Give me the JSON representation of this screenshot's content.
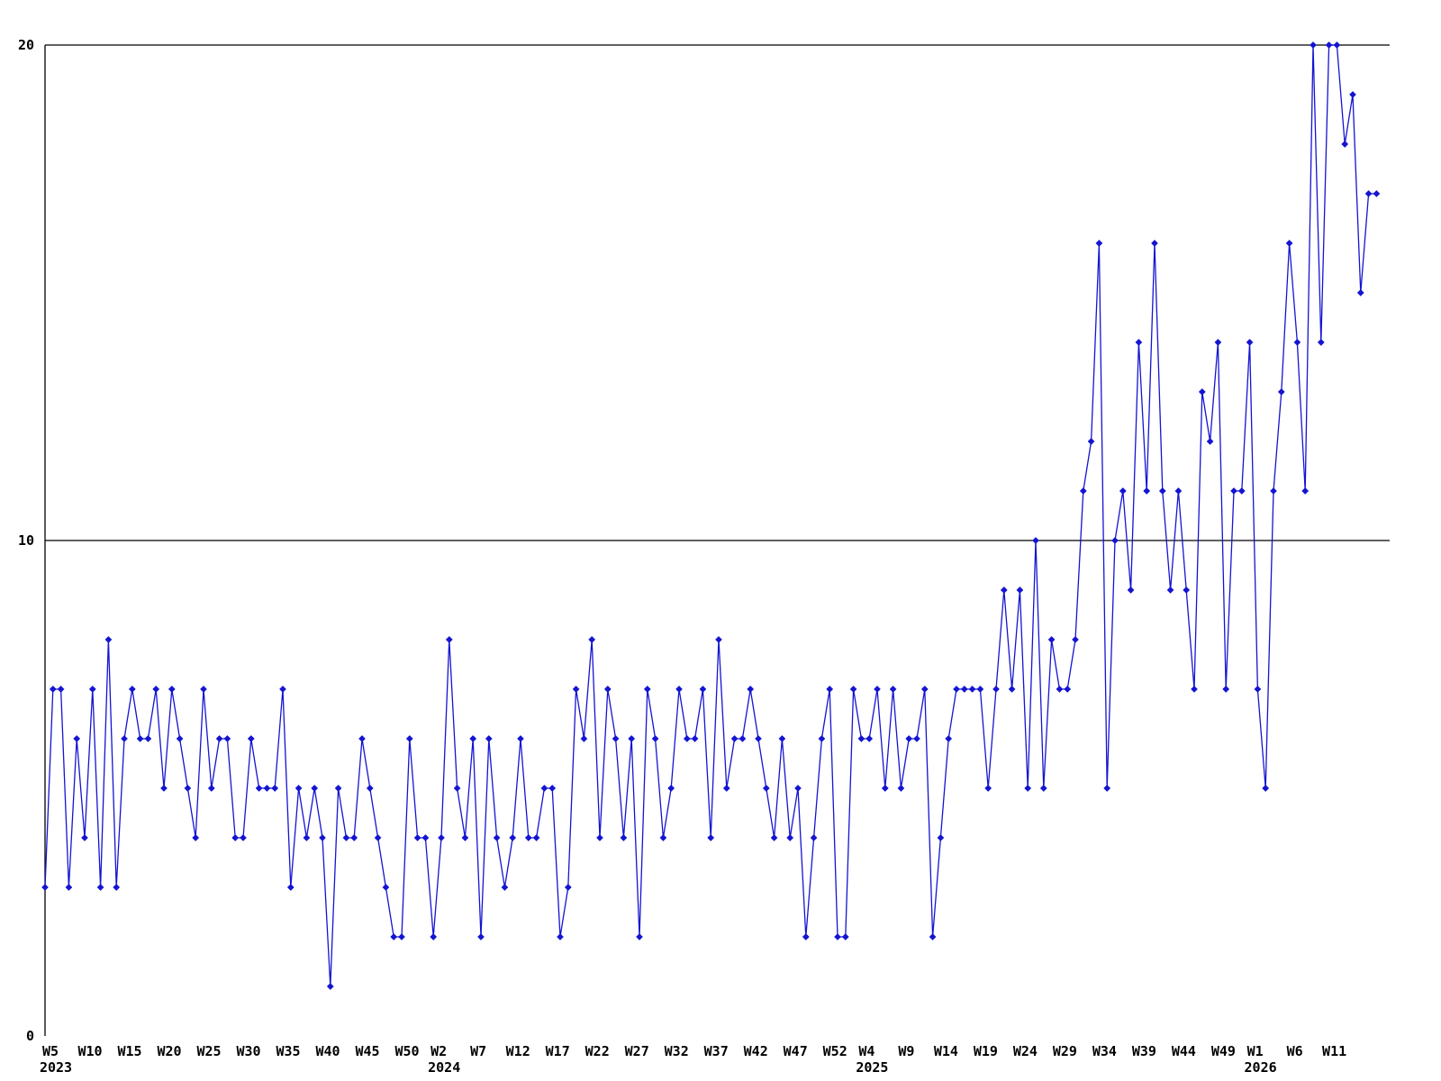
{
  "chart_data": {
    "type": "line",
    "title": "",
    "x_axis": {
      "unit": "ISO week",
      "tick_labels": [
        {
          "label": "W5",
          "index": 0
        },
        {
          "label": "W10",
          "index": 5
        },
        {
          "label": "W15",
          "index": 10
        },
        {
          "label": "W20",
          "index": 15
        },
        {
          "label": "W25",
          "index": 20
        },
        {
          "label": "W30",
          "index": 25
        },
        {
          "label": "W35",
          "index": 30
        },
        {
          "label": "W40",
          "index": 35
        },
        {
          "label": "W45",
          "index": 40
        },
        {
          "label": "W50",
          "index": 45
        },
        {
          "label": "W2",
          "index": 49
        },
        {
          "label": "W7",
          "index": 54
        },
        {
          "label": "W12",
          "index": 59
        },
        {
          "label": "W17",
          "index": 64
        },
        {
          "label": "W22",
          "index": 69
        },
        {
          "label": "W27",
          "index": 74
        },
        {
          "label": "W32",
          "index": 79
        },
        {
          "label": "W37",
          "index": 84
        },
        {
          "label": "W42",
          "index": 89
        },
        {
          "label": "W47",
          "index": 94
        },
        {
          "label": "W52",
          "index": 99
        },
        {
          "label": "W4",
          "index": 103
        },
        {
          "label": "W9",
          "index": 108
        },
        {
          "label": "W14",
          "index": 113
        },
        {
          "label": "W19",
          "index": 118
        },
        {
          "label": "W24",
          "index": 123
        },
        {
          "label": "W29",
          "index": 128
        },
        {
          "label": "W34",
          "index": 133
        },
        {
          "label": "W39",
          "index": 138
        },
        {
          "label": "W44",
          "index": 143
        },
        {
          "label": "W49",
          "index": 148
        },
        {
          "label": "W1",
          "index": 152
        },
        {
          "label": "W6",
          "index": 157
        },
        {
          "label": "W11",
          "index": 162
        }
      ],
      "year_labels": [
        {
          "label": "2023",
          "index": 0
        },
        {
          "label": "2024",
          "index": 49
        },
        {
          "label": "2025",
          "index": 103
        },
        {
          "label": "2026",
          "index": 152
        }
      ]
    },
    "y_axis": {
      "tick_labels": [
        "0",
        "10",
        "20"
      ],
      "ticks": [
        0,
        10,
        20
      ],
      "ylim": [
        0,
        20
      ],
      "gridlines_at": [
        10,
        20
      ]
    },
    "series": {
      "color": "#1414d2",
      "marker": "diamond",
      "start_week_label": "W5",
      "start_year_label": "2023",
      "values": [
        3,
        7,
        7,
        3,
        6,
        4,
        7,
        3,
        8,
        3,
        6,
        7,
        6,
        6,
        7,
        5,
        7,
        6,
        5,
        4,
        7,
        5,
        6,
        6,
        4,
        4,
        6,
        5,
        5,
        5,
        7,
        3,
        5,
        4,
        5,
        4,
        1,
        5,
        4,
        4,
        6,
        5,
        4,
        3,
        2,
        2,
        6,
        4,
        4,
        2,
        4,
        8,
        5,
        4,
        6,
        2,
        6,
        4,
        3,
        4,
        6,
        4,
        4,
        5,
        5,
        2,
        3,
        7,
        6,
        8,
        4,
        7,
        6,
        4,
        6,
        2,
        7,
        6,
        4,
        5,
        7,
        6,
        6,
        7,
        4,
        8,
        5,
        6,
        6,
        7,
        6,
        5,
        4,
        6,
        4,
        5,
        2,
        4,
        6,
        7,
        2,
        2,
        7,
        6,
        6,
        7,
        5,
        7,
        5,
        6,
        6,
        7,
        2,
        4,
        6,
        7,
        7,
        7,
        7,
        5,
        7,
        9,
        7,
        9,
        5,
        10,
        5,
        8,
        7,
        7,
        8,
        11,
        12,
        16,
        5,
        10,
        11,
        9,
        14,
        11,
        16,
        11,
        9,
        11,
        9,
        7,
        13,
        12,
        14,
        7,
        11,
        11,
        14,
        7,
        5,
        11,
        13,
        16,
        14,
        11,
        20,
        14,
        20,
        20,
        18,
        19,
        15,
        17,
        17
      ]
    }
  },
  "colors": {
    "line": "#1414d2",
    "axis": "#000000",
    "background": "#ffffff",
    "text": "#000000"
  }
}
